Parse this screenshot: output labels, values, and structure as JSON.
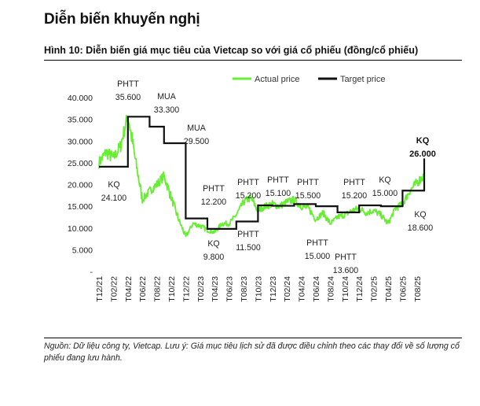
{
  "header": {
    "section_title": "Diễn biến khuyến nghị",
    "figure_title": "Hình 10: Diễn biến giá mục tiêu của Vietcap so với giá cổ phiếu (đồng/cổ phiếu)"
  },
  "footer": {
    "source": "Nguồn: Dữ liệu công ty, Vietcap. Lưu ý: Giá mục tiêu lịch sử đã được điều chỉnh theo các thay đổi về số lượng cổ phiếu đang lưu hành."
  },
  "colors": {
    "actual": "#66ee33",
    "target": "#111111"
  },
  "chart_data": {
    "type": "line",
    "title": "",
    "xlabel": "",
    "ylabel": "",
    "ylim": [
      0,
      40000
    ],
    "yticks": [
      40000,
      35000,
      30000,
      25000,
      20000,
      15000,
      10000,
      5000,
      0
    ],
    "ytick_labels": [
      "40.000",
      "35.000",
      "30.000",
      "25.000",
      "20.000",
      "15.000",
      "10.000",
      "5.000",
      "-"
    ],
    "x_start": "2021-12",
    "x_end": "2025-09",
    "x_ticks": [
      "T12/21",
      "T02/22",
      "T04/22",
      "T06/22",
      "T08/22",
      "T10/22",
      "T12/22",
      "T02/23",
      "T04/23",
      "T06/23",
      "T08/23",
      "T10/23",
      "T12/23",
      "T02/24",
      "T04/24",
      "T06/24",
      "T08/24",
      "T10/24",
      "T12/24",
      "T02/25",
      "T04/25",
      "T06/25",
      "T08/25"
    ],
    "legend": {
      "position": "top",
      "entries": [
        "Actual price",
        "Target price"
      ]
    },
    "series": [
      {
        "name": "Actual price",
        "x": [
          "T12/21",
          "T01/22",
          "T02/22",
          "T03/22",
          "T04/22",
          "T05/22",
          "T06/22",
          "T07/22",
          "T08/22",
          "T09/22",
          "T10/22",
          "T11/22",
          "T12/22",
          "T01/23",
          "T02/23",
          "T03/23",
          "T04/23",
          "T05/23",
          "T06/23",
          "T07/23",
          "T08/23",
          "T09/23",
          "T10/23",
          "T11/23",
          "T12/23",
          "T01/24",
          "T02/24",
          "T03/24",
          "T04/24",
          "T05/24",
          "T06/24",
          "T07/24",
          "T08/24",
          "T09/24",
          "T10/24",
          "T11/24",
          "T12/24",
          "T01/25",
          "T02/25",
          "T03/25",
          "T04/25",
          "T05/25",
          "T06/25",
          "T07/25",
          "T08/25",
          "T09/25"
        ],
        "values": [
          25000,
          27500,
          26000,
          29000,
          36000,
          26000,
          16500,
          18500,
          20000,
          22000,
          17000,
          12000,
          8000,
          11000,
          10500,
          9500,
          9000,
          11000,
          11000,
          13000,
          16000,
          17000,
          14000,
          15000,
          15500,
          15000,
          16000,
          16500,
          15000,
          14500,
          12000,
          13500,
          11000,
          12500,
          13000,
          14000,
          14500,
          13500,
          14000,
          13000,
          11000,
          14500,
          15500,
          18500,
          20500,
          22000
        ]
      },
      {
        "name": "Target price",
        "x": [
          "T12/21",
          "T02/22",
          "T04/22",
          "T07/22",
          "T09/22",
          "T12/22",
          "T03/23",
          "T07/23",
          "T10/23",
          "T12/23",
          "T03/24",
          "T06/24",
          "T09/24",
          "T12/24",
          "T03/25",
          "T06/25",
          "T09/25"
        ],
        "values": [
          24100,
          24100,
          35600,
          33300,
          29500,
          12200,
          9800,
          11500,
          15200,
          15100,
          15500,
          15000,
          13600,
          15200,
          15000,
          18600,
          26000
        ]
      }
    ],
    "annotations": [
      {
        "lines": [
          "PHTT",
          "35.600"
        ]
      },
      {
        "lines": [
          "MUA",
          "33.300"
        ]
      },
      {
        "lines": [
          "MUA",
          "29.500"
        ]
      },
      {
        "lines": [
          "KQ",
          "24.100"
        ]
      },
      {
        "lines": [
          "PHTT",
          "12.200"
        ]
      },
      {
        "lines": [
          "KQ",
          "9.800"
        ]
      },
      {
        "lines": [
          "PHTT",
          "11.500"
        ]
      },
      {
        "lines": [
          "PHTT",
          "15.200"
        ]
      },
      {
        "lines": [
          "PHTT",
          "15.100"
        ]
      },
      {
        "lines": [
          "PHTT",
          "15.500"
        ]
      },
      {
        "lines": [
          "PHTT",
          "15.000"
        ]
      },
      {
        "lines": [
          "PHTT",
          "13.600"
        ]
      },
      {
        "lines": [
          "PHTT",
          "15.200"
        ]
      },
      {
        "lines": [
          "KQ",
          "15.000"
        ]
      },
      {
        "lines": [
          "KQ",
          "18.600"
        ]
      },
      {
        "lines": [
          "KQ",
          "26.000"
        ],
        "bold": true
      }
    ]
  }
}
